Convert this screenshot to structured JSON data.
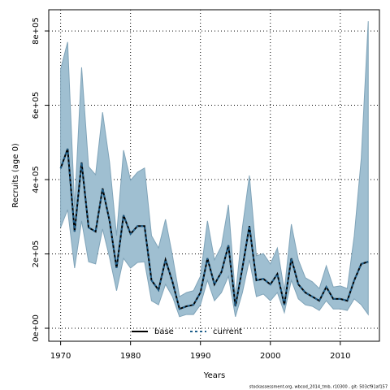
{
  "chart_data": {
    "type": "band-line",
    "x_label": "Years",
    "y_label": "Recruits (age 0)",
    "caption": "stockassessment.org, wbcod_2014_tmb, r10300 , git: 503cf91af157",
    "x": [
      1970,
      1971,
      1972,
      1973,
      1974,
      1975,
      1976,
      1977,
      1978,
      1979,
      1980,
      1981,
      1982,
      1983,
      1984,
      1985,
      1986,
      1987,
      1988,
      1989,
      1990,
      1991,
      1992,
      1993,
      1994,
      1995,
      1996,
      1997,
      1998,
      1999,
      2000,
      2001,
      2002,
      2003,
      2004,
      2005,
      2006,
      2007,
      2008,
      2009,
      2010,
      2011,
      2012,
      2013,
      2014
    ],
    "series": [
      {
        "name": "base",
        "color": "#000000",
        "values": [
          430000,
          483000,
          260000,
          446000,
          271000,
          260000,
          376000,
          289000,
          162000,
          304000,
          254000,
          275000,
          275000,
          129000,
          103000,
          184000,
          125000,
          52000,
          59000,
          63000,
          96000,
          188000,
          118000,
          151000,
          223000,
          59000,
          162000,
          275000,
          129000,
          133000,
          118000,
          146000,
          63000,
          188000,
          118000,
          96000,
          85000,
          74000,
          111000,
          79000,
          79000,
          74000,
          129000,
          173000,
          179000
        ]
      },
      {
        "name": "current",
        "color": "#1f5f8b",
        "values": [
          430000,
          483000,
          260000,
          446000,
          271000,
          260000,
          376000,
          289000,
          162000,
          304000,
          254000,
          275000,
          275000,
          129000,
          103000,
          184000,
          125000,
          52000,
          59000,
          63000,
          96000,
          188000,
          118000,
          151000,
          223000,
          59000,
          162000,
          275000,
          129000,
          133000,
          118000,
          146000,
          63000,
          188000,
          118000,
          96000,
          85000,
          74000,
          111000,
          79000,
          79000,
          74000,
          129000,
          173000,
          179000
        ]
      }
    ],
    "band": {
      "color": "#9fbfd1",
      "upper": [
        697000,
        770000,
        326000,
        702000,
        435000,
        413000,
        581000,
        446000,
        249000,
        479000,
        398000,
        420000,
        431000,
        249000,
        216000,
        293000,
        195000,
        85000,
        96000,
        101000,
        140000,
        289000,
        184000,
        221000,
        332000,
        85000,
        271000,
        411000,
        195000,
        201000,
        173000,
        216000,
        101000,
        280000,
        184000,
        136000,
        125000,
        107000,
        168000,
        111000,
        114000,
        107000,
        249000,
        457000,
        826000
      ],
      "lower": [
        271000,
        319000,
        162000,
        289000,
        179000,
        173000,
        267000,
        190000,
        101000,
        188000,
        162000,
        177000,
        179000,
        74000,
        63000,
        118000,
        85000,
        31000,
        37000,
        37000,
        63000,
        129000,
        74000,
        96000,
        140000,
        31000,
        96000,
        184000,
        85000,
        92000,
        74000,
        96000,
        42000,
        129000,
        79000,
        63000,
        59000,
        48000,
        74000,
        52000,
        52000,
        48000,
        79000,
        63000,
        37000
      ]
    },
    "xlim": [
      1968.3,
      2015.6
    ],
    "ylim": [
      -35000,
      857000
    ],
    "xticks": [
      1970,
      1980,
      1990,
      2000,
      2010
    ],
    "yticks": [
      {
        "value": 0,
        "label": "0e+00"
      },
      {
        "value": 200000,
        "label": "2e+05"
      },
      {
        "value": 400000,
        "label": "4e+05"
      },
      {
        "value": 600000,
        "label": "6e+05"
      },
      {
        "value": 800000,
        "label": "8e+05"
      }
    ],
    "grid": true,
    "legend": "bottom"
  }
}
